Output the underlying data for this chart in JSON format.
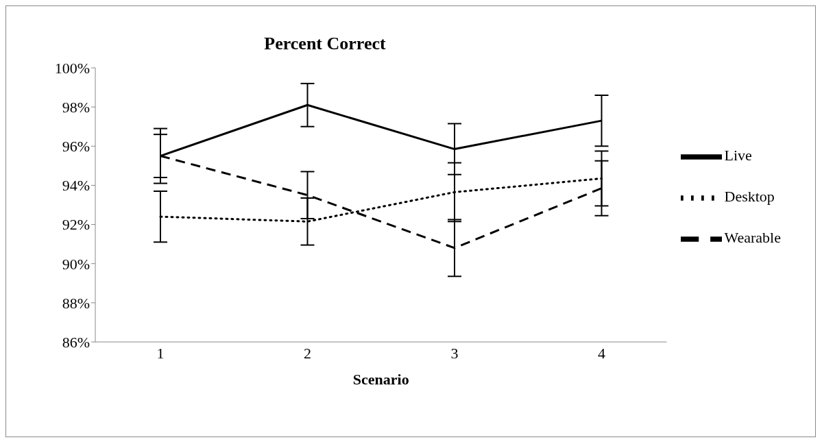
{
  "chart_data": {
    "type": "line",
    "title": "Percent Correct",
    "xlabel": "Scenario",
    "categories": [
      "1",
      "2",
      "3",
      "4"
    ],
    "series": [
      {
        "name": "Live",
        "color": "#000000",
        "line_style": "solid",
        "values": [
          95.5,
          98.1,
          95.85,
          97.3
        ],
        "errors": [
          1.4,
          1.1,
          1.3,
          1.3
        ]
      },
      {
        "name": "Desktop",
        "color": "#000000",
        "line_style": "dotted",
        "values": [
          92.4,
          92.15,
          93.65,
          94.35
        ],
        "errors": [
          1.3,
          1.2,
          1.5,
          1.4
        ]
      },
      {
        "name": "Wearable",
        "color": "#000000",
        "line_style": "dashed",
        "values": [
          95.5,
          93.5,
          90.8,
          93.85
        ],
        "errors": [
          1.1,
          1.2,
          1.45,
          1.4
        ]
      }
    ],
    "ylim": [
      86,
      100
    ],
    "yticks": [
      {
        "value": 86,
        "label": "86%"
      },
      {
        "value": 88,
        "label": "88%"
      },
      {
        "value": 90,
        "label": "90%"
      },
      {
        "value": 92,
        "label": "92%"
      },
      {
        "value": 94,
        "label": "94%"
      },
      {
        "value": 96,
        "label": "96%"
      },
      {
        "value": 98,
        "label": "98%"
      },
      {
        "value": 100,
        "label": "100%"
      }
    ],
    "grid": false,
    "legend": "right",
    "marker": "none"
  }
}
